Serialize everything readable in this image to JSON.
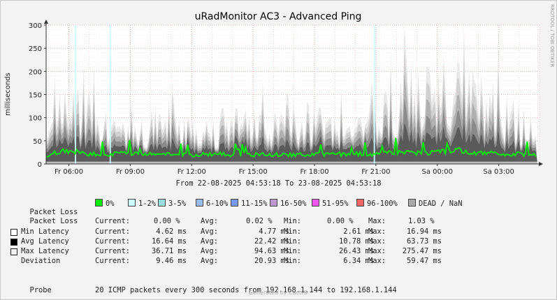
{
  "chart_data": {
    "type": "area",
    "title": "uRadMonitor AC3 - Advanced Ping",
    "ylabel": "milliseconds",
    "ylim": [
      0,
      300
    ],
    "yticks": [
      "0",
      "50",
      "100",
      "150",
      "200",
      "250",
      "300"
    ],
    "xlim": [
      "22-08-2025 04:53:18",
      "23-08-2025 04:53:18"
    ],
    "xticks": [
      "Fr 06:00",
      "Fr 09:00",
      "Fr 12:00",
      "Fr 15:00",
      "Fr 18:00",
      "Fr 21:00",
      "Sa 00:00",
      "Sa 03:00"
    ],
    "xtick_hours_from_start": [
      1.11,
      4.11,
      7.11,
      10.11,
      13.11,
      16.11,
      19.11,
      22.11
    ],
    "grid": true,
    "series": [
      {
        "name": "Avg Latency",
        "color": "#00ee00",
        "sample": "5-minute ICMP average",
        "values_hours": [
          0,
          1,
          2,
          3,
          4,
          5,
          6,
          7,
          8,
          9,
          10,
          11,
          12,
          13,
          14,
          15,
          16,
          17,
          18,
          19,
          20,
          21,
          22,
          23,
          24
        ],
        "values": [
          18,
          28,
          22,
          21,
          22,
          20,
          20,
          19,
          21,
          20,
          19,
          20,
          19,
          21,
          20,
          22,
          20,
          24,
          24,
          24,
          30,
          24,
          22,
          21,
          20
        ]
      },
      {
        "name": "Max Latency",
        "color": "#b8b8b8",
        "values_hours": [
          0,
          1,
          2,
          3,
          4,
          5,
          6,
          7,
          8,
          9,
          10,
          11,
          12,
          13,
          14,
          15,
          16,
          17,
          18,
          19,
          20,
          21,
          22,
          23,
          24
        ],
        "values": [
          70,
          150,
          140,
          110,
          90,
          95,
          120,
          100,
          90,
          110,
          100,
          100,
          120,
          110,
          90,
          100,
          110,
          150,
          190,
          160,
          180,
          170,
          140,
          110,
          80
        ]
      },
      {
        "name": "Min Latency",
        "color": "#ffffff",
        "values_hours": [
          0,
          12,
          24
        ],
        "values": [
          4.6,
          4.7,
          4.6
        ]
      }
    ]
  },
  "subtitle": "From 22-08-2025 04:53:18 To 23-08-2025 04:53:18",
  "side_note": "RRDTOOL / TOBI OETIKER",
  "packet_loss_legend": {
    "label": "Packet Loss",
    "items": [
      {
        "label": "0%",
        "color": "#00ee00"
      },
      {
        "label": "1-2%",
        "color": "#ccffff"
      },
      {
        "label": "3-5%",
        "color": "#99dddd"
      },
      {
        "label": "6-10%",
        "color": "#99bbee"
      },
      {
        "label": "11-15%",
        "color": "#7799ee"
      },
      {
        "label": "16-50%",
        "color": "#bb99cc"
      },
      {
        "label": "51-95%",
        "color": "#ee55ee"
      },
      {
        "label": "96-100%",
        "color": "#ee6666"
      },
      {
        "label": "DEAD / NaN",
        "color": "#aaaaaa"
      }
    ]
  },
  "stats": {
    "packet_loss": {
      "label": "Packet Loss",
      "current": "0.00 %",
      "avg": "0.02 %",
      "min": "0.00 %",
      "max": "1.03 %"
    },
    "min_latency": {
      "label": "Min Latency",
      "current": "4.62 ms",
      "avg": "4.77 ms",
      "min": "2.61 ms",
      "max": "16.94 ms"
    },
    "avg_latency": {
      "label": "Avg Latency",
      "current": "16.64 ms",
      "avg": "22.42 ms",
      "min": "10.78 ms",
      "max": "63.73 ms"
    },
    "max_latency": {
      "label": "Max Latency",
      "current": "36.71 ms",
      "avg": "94.63 ms",
      "min": "26.43 ms",
      "max": "275.47 ms"
    },
    "deviation": {
      "label": "Deviation",
      "current": "9.46 ms",
      "avg": "20.93 ms",
      "min": "6.34 ms",
      "max": "59.47 ms"
    }
  },
  "labels": {
    "current": "Current:",
    "avg": "Avg:",
    "min": "Min:",
    "max": "Max:"
  },
  "probe": {
    "label": "Probe",
    "text": "20 ICMP packets every 300 seconds from 192.168.1.144 to 192.168.1.144"
  },
  "footer": "Generated by Cacti®"
}
